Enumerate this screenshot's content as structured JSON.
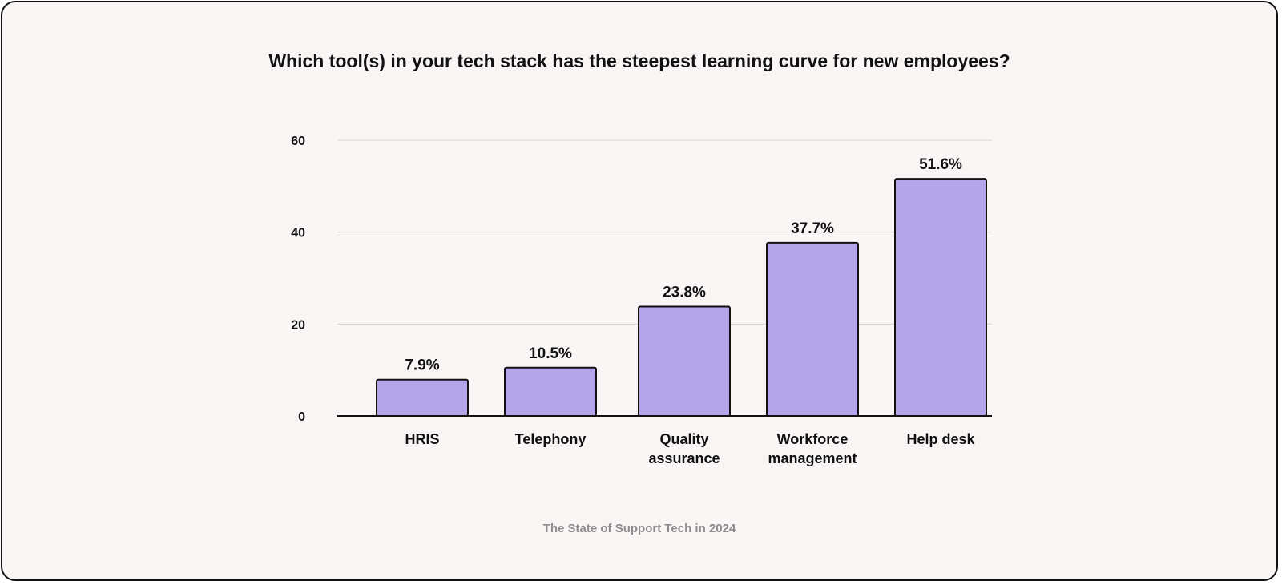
{
  "chart_data": {
    "type": "bar",
    "title": "Which tool(s) in your tech stack has the steepest learning curve for new employees?",
    "categories": [
      [
        "HRIS"
      ],
      [
        "Telephony"
      ],
      [
        "Quality",
        "assurance"
      ],
      [
        "Workforce",
        "management"
      ],
      [
        "Help desk"
      ]
    ],
    "values": [
      7.9,
      10.5,
      23.8,
      37.7,
      51.6
    ],
    "value_labels": [
      "7.9%",
      "10.5%",
      "23.8%",
      "37.7%",
      "51.6%"
    ],
    "ylim": [
      0,
      60
    ],
    "yticks": [
      "0",
      "20",
      "40",
      "60"
    ],
    "grid": true,
    "xlabel": "",
    "ylabel": ""
  },
  "source": "The State of Support Tech in 2024",
  "colors": {
    "bar_fill": "#b4a4ea",
    "bar_stroke": "#111111",
    "grid": "#d6d2d2",
    "axis": "#111111"
  }
}
